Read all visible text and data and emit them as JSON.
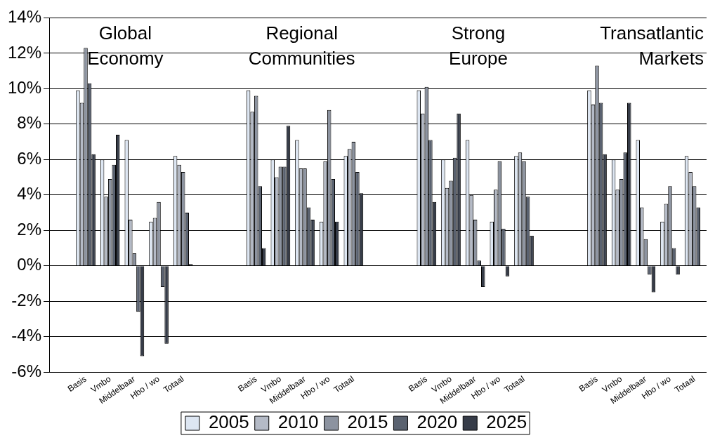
{
  "chart_data": {
    "type": "bar",
    "categories": [
      null,
      "Basis",
      "Vmbo",
      "Middelbaar",
      "Hbo / wo",
      "Totaal",
      null,
      null,
      "Basis",
      "Vmbo",
      "Middelbaar",
      "Hbo / wo",
      "Totaal",
      null,
      null,
      "Basis",
      "Vmbo",
      "Middelbaar",
      "Hbo / wo",
      "Totaal",
      null,
      null,
      "Basis",
      "Vmbo",
      "Middelbaar",
      "Hbo / wo",
      "Totaal"
    ],
    "series": [
      {
        "name": "2005",
        "color": "#dde6f2",
        "values": [
          null,
          9.9,
          6.0,
          7.1,
          2.5,
          6.2,
          null,
          null,
          9.9,
          6.0,
          7.1,
          2.5,
          6.2,
          null,
          null,
          9.9,
          6.0,
          7.1,
          2.5,
          6.2,
          null,
          null,
          9.9,
          6.0,
          7.1,
          2.5,
          6.2
        ]
      },
      {
        "name": "2010",
        "color": "#b4bac6",
        "values": [
          null,
          9.2,
          3.9,
          2.6,
          2.7,
          5.7,
          null,
          null,
          8.7,
          5.0,
          5.5,
          5.9,
          6.6,
          null,
          null,
          8.6,
          4.4,
          4.0,
          4.3,
          6.4,
          null,
          null,
          9.1,
          4.3,
          3.3,
          3.5,
          5.3
        ]
      },
      {
        "name": "2015",
        "color": "#8c93a0",
        "values": [
          null,
          12.3,
          4.9,
          0.7,
          3.6,
          5.3,
          null,
          null,
          9.6,
          5.6,
          5.5,
          8.8,
          7.0,
          null,
          null,
          10.1,
          4.8,
          2.6,
          5.9,
          5.9,
          null,
          null,
          11.3,
          4.9,
          1.5,
          4.5,
          4.5
        ]
      },
      {
        "name": "2020",
        "color": "#5a6270",
        "values": [
          null,
          10.3,
          5.7,
          -2.6,
          -1.2,
          3.0,
          null,
          null,
          4.5,
          5.6,
          3.3,
          4.9,
          5.3,
          null,
          null,
          7.1,
          6.1,
          0.3,
          2.1,
          3.9,
          null,
          null,
          9.2,
          6.4,
          -0.5,
          1.0,
          3.3
        ]
      },
      {
        "name": "2025",
        "color": "#363c48",
        "values": [
          null,
          6.3,
          7.4,
          -5.1,
          -4.4,
          0.1,
          null,
          null,
          1.0,
          7.9,
          2.6,
          2.5,
          4.1,
          null,
          null,
          3.6,
          8.6,
          -1.2,
          -0.6,
          1.7,
          null,
          null,
          6.3,
          9.2,
          -1.5,
          -0.5,
          null
        ]
      }
    ],
    "ylim": [
      -6,
      14
    ],
    "yticks": [
      {
        "value": -6,
        "label": "-6%"
      },
      {
        "value": -4,
        "label": "-4%"
      },
      {
        "value": -2,
        "label": "-2%"
      },
      {
        "value": 0,
        "label": "0%"
      },
      {
        "value": 2,
        "label": "2%"
      },
      {
        "value": 4,
        "label": "4%"
      },
      {
        "value": 6,
        "label": "6%"
      },
      {
        "value": 8,
        "label": "8%"
      },
      {
        "value": 10,
        "label": "10%"
      },
      {
        "value": 12,
        "label": "12%"
      },
      {
        "value": 14,
        "label": "14%"
      }
    ],
    "grid": "y",
    "legend": "bottom",
    "annotations": [
      "Global\nEconomy",
      "Regional\nCommunities",
      "Strong\nEurope",
      "Transatlantic\nMarkets"
    ]
  }
}
